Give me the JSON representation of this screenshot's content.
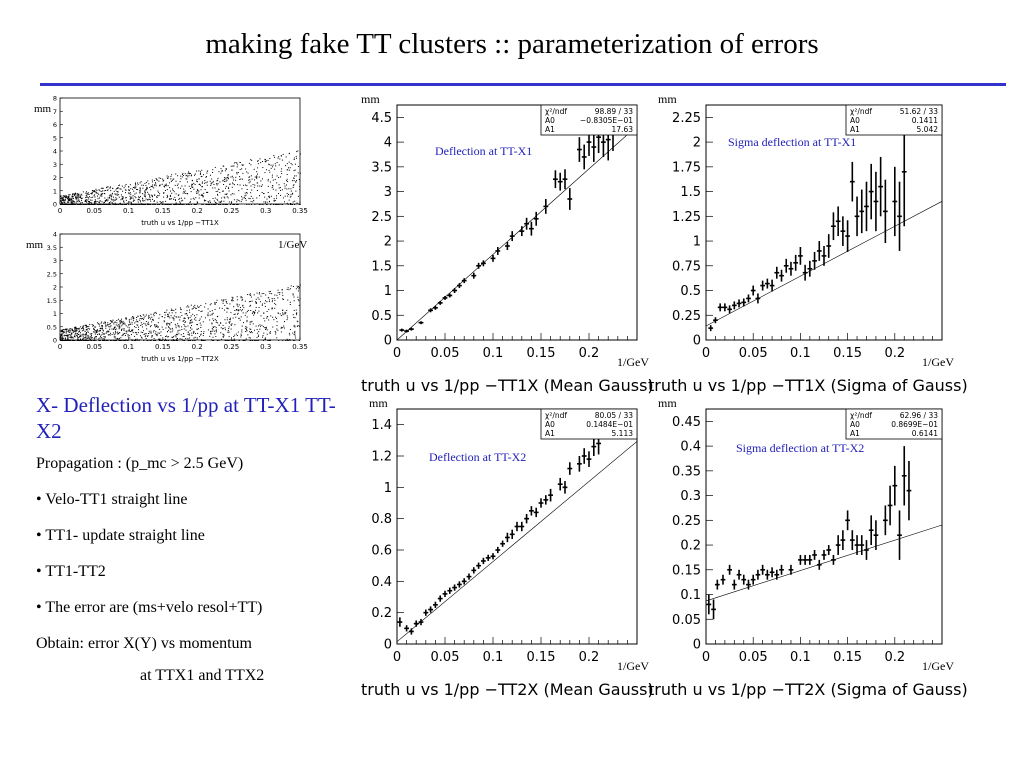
{
  "slide": {
    "title": "making fake TT clusters :: parameterization of errors",
    "heading": "X- Deflection vs 1/pp at TT-X1 TT-X2",
    "lines": [
      "Propagation : (p_mc > 2.5 GeV)",
      "• Velo-TT1 straight line",
      "• TT1- update straight line",
      "• TT1-TT2",
      "• The error are (ms+velo resol+TT)",
      "Obtain: error X(Y) vs momentum",
      "at TTX1 and TTX2"
    ]
  },
  "chart_data": [
    {
      "type": "scatter",
      "title": "truth  u vs 1/pp −TT1X",
      "ylabel": "mm",
      "xlabel": "",
      "xlim": [
        0,
        0.35
      ],
      "ylim": [
        0,
        8
      ],
      "xticks": [
        "0",
        "0.05",
        "0.1",
        "0.15",
        "0.2",
        "0.25",
        "0.3",
        "0.35"
      ],
      "yticks": [
        "0",
        "1",
        "2",
        "3",
        "4",
        "5",
        "6",
        "7",
        "8"
      ],
      "slope": 11.0,
      "intercept": 0.05,
      "spread": 0.6,
      "maxx": 0.35
    },
    {
      "type": "scatter",
      "title": "truth  u vs 1/pp −TT2X",
      "ylabel": "mm",
      "xlabel": "1/GeV",
      "xlim": [
        0,
        0.35
      ],
      "ylim": [
        0,
        4
      ],
      "xticks": [
        "0",
        "0.05",
        "0.1",
        "0.15",
        "0.2",
        "0.25",
        "0.3",
        "0.35"
      ],
      "yticks": [
        "0",
        "0.5",
        "1",
        "1.5",
        "2",
        "2.5",
        "3",
        "3.5",
        "4"
      ],
      "slope": 5.5,
      "intercept": 0.1,
      "spread": 0.3,
      "maxx": 0.35
    },
    {
      "type": "scatter",
      "title": "truth  u vs 1/pp −TT1X (Mean Gauss)",
      "annotation": "Deflection at TT-X1",
      "ylabel": "mm",
      "xlabel": "1/GeV",
      "xlim": [
        0,
        0.25
      ],
      "ylim": [
        0,
        4.75
      ],
      "xticks": [
        {
          "v": 0,
          "l": "0"
        },
        {
          "v": 0.05,
          "l": "0.05"
        },
        {
          "v": 0.1,
          "l": "0.1"
        },
        {
          "v": 0.15,
          "l": "0.15"
        },
        {
          "v": 0.2,
          "l": "0.2"
        }
      ],
      "yticks": [
        {
          "v": 0,
          "l": "0"
        },
        {
          "v": 0.5,
          "l": "0.5"
        },
        {
          "v": 1,
          "l": "1"
        },
        {
          "v": 1.5,
          "l": "1.5"
        },
        {
          "v": 2,
          "l": "2"
        },
        {
          "v": 2.5,
          "l": "2.5"
        },
        {
          "v": 3,
          "l": "3"
        },
        {
          "v": 3.5,
          "l": "3.5"
        },
        {
          "v": 4,
          "l": "4"
        },
        {
          "v": 4.5,
          "l": "4.5"
        }
      ],
      "stats": [
        [
          "χ²/ndf",
          "98.89   /   33"
        ],
        [
          "A0",
          "−0.8305E−01"
        ],
        [
          "A1",
          "17.63"
        ]
      ],
      "fit": {
        "a0": -0.08305,
        "a1": 17.63
      },
      "points": [
        [
          0.005,
          0.2,
          0.03
        ],
        [
          0.01,
          0.18,
          0.03
        ],
        [
          0.015,
          0.22,
          0.03
        ],
        [
          0.025,
          0.35,
          0.03
        ],
        [
          0.035,
          0.6,
          0.04
        ],
        [
          0.04,
          0.65,
          0.04
        ],
        [
          0.045,
          0.75,
          0.04
        ],
        [
          0.05,
          0.85,
          0.04
        ],
        [
          0.055,
          0.9,
          0.04
        ],
        [
          0.06,
          1.0,
          0.05
        ],
        [
          0.065,
          1.1,
          0.05
        ],
        [
          0.07,
          1.2,
          0.05
        ],
        [
          0.08,
          1.3,
          0.06
        ],
        [
          0.085,
          1.5,
          0.06
        ],
        [
          0.09,
          1.55,
          0.06
        ],
        [
          0.1,
          1.65,
          0.07
        ],
        [
          0.105,
          1.8,
          0.08
        ],
        [
          0.115,
          1.9,
          0.08
        ],
        [
          0.12,
          2.1,
          0.1
        ],
        [
          0.13,
          2.2,
          0.1
        ],
        [
          0.135,
          2.35,
          0.12
        ],
        [
          0.14,
          2.25,
          0.14
        ],
        [
          0.145,
          2.45,
          0.14
        ],
        [
          0.155,
          2.7,
          0.15
        ],
        [
          0.165,
          3.25,
          0.18
        ],
        [
          0.17,
          3.2,
          0.18
        ],
        [
          0.175,
          3.25,
          0.2
        ],
        [
          0.18,
          2.85,
          0.22
        ],
        [
          0.19,
          3.85,
          0.25
        ],
        [
          0.195,
          3.7,
          0.25
        ],
        [
          0.2,
          4.0,
          0.28
        ],
        [
          0.205,
          3.9,
          0.3
        ],
        [
          0.21,
          4.1,
          0.32
        ],
        [
          0.215,
          4.0,
          0.3
        ],
        [
          0.22,
          4.05,
          0.42
        ],
        [
          0.225,
          4.2,
          0.38
        ]
      ]
    },
    {
      "type": "scatter",
      "title": "truth  u vs 1/pp −TT1X (Sigma of Gauss)",
      "annotation": "Sigma deflection at TT-X1",
      "ylabel": "mm",
      "xlabel": "1/GeV",
      "xlim": [
        0,
        0.25
      ],
      "ylim": [
        0,
        2.375
      ],
      "xticks": [
        {
          "v": 0,
          "l": "0"
        },
        {
          "v": 0.05,
          "l": "0.05"
        },
        {
          "v": 0.1,
          "l": "0.1"
        },
        {
          "v": 0.15,
          "l": "0.15"
        },
        {
          "v": 0.2,
          "l": "0.2"
        }
      ],
      "yticks": [
        {
          "v": 0,
          "l": "0"
        },
        {
          "v": 0.25,
          "l": "0.25"
        },
        {
          "v": 0.5,
          "l": "0.5"
        },
        {
          "v": 0.75,
          "l": "0.75"
        },
        {
          "v": 1,
          "l": "1"
        },
        {
          "v": 1.25,
          "l": "1.25"
        },
        {
          "v": 1.5,
          "l": "1.5"
        },
        {
          "v": 1.75,
          "l": "1.75"
        },
        {
          "v": 2,
          "l": "2"
        },
        {
          "v": 2.25,
          "l": "2.25"
        }
      ],
      "stats": [
        [
          "χ²/ndf",
          "51.62   /   33"
        ],
        [
          "A0",
          "0.1411"
        ],
        [
          "A1",
          "5.042"
        ]
      ],
      "fit": {
        "a0": 0.1411,
        "a1": 5.042
      },
      "points": [
        [
          0.005,
          0.12,
          0.03
        ],
        [
          0.01,
          0.2,
          0.03
        ],
        [
          0.015,
          0.33,
          0.04
        ],
        [
          0.02,
          0.33,
          0.04
        ],
        [
          0.025,
          0.31,
          0.04
        ],
        [
          0.03,
          0.35,
          0.04
        ],
        [
          0.035,
          0.37,
          0.04
        ],
        [
          0.04,
          0.38,
          0.04
        ],
        [
          0.045,
          0.42,
          0.04
        ],
        [
          0.05,
          0.5,
          0.05
        ],
        [
          0.055,
          0.42,
          0.05
        ],
        [
          0.06,
          0.55,
          0.05
        ],
        [
          0.065,
          0.57,
          0.05
        ],
        [
          0.07,
          0.55,
          0.06
        ],
        [
          0.075,
          0.68,
          0.06
        ],
        [
          0.08,
          0.65,
          0.06
        ],
        [
          0.085,
          0.75,
          0.07
        ],
        [
          0.09,
          0.72,
          0.07
        ],
        [
          0.095,
          0.78,
          0.08
        ],
        [
          0.1,
          0.85,
          0.09
        ],
        [
          0.105,
          0.68,
          0.08
        ],
        [
          0.11,
          0.72,
          0.08
        ],
        [
          0.115,
          0.8,
          0.09
        ],
        [
          0.12,
          0.9,
          0.1
        ],
        [
          0.125,
          0.85,
          0.1
        ],
        [
          0.13,
          0.95,
          0.12
        ],
        [
          0.135,
          1.15,
          0.14
        ],
        [
          0.14,
          1.2,
          0.15
        ],
        [
          0.145,
          1.1,
          0.15
        ],
        [
          0.15,
          1.05,
          0.16
        ],
        [
          0.155,
          1.6,
          0.2
        ],
        [
          0.16,
          1.25,
          0.2
        ],
        [
          0.165,
          1.3,
          0.22
        ],
        [
          0.17,
          1.35,
          0.25
        ],
        [
          0.175,
          1.5,
          0.28
        ],
        [
          0.18,
          1.4,
          0.3
        ],
        [
          0.185,
          1.55,
          0.3
        ],
        [
          0.19,
          1.3,
          0.32
        ],
        [
          0.2,
          1.4,
          0.35
        ],
        [
          0.205,
          1.25,
          0.35
        ],
        [
          0.21,
          1.7,
          0.55
        ]
      ]
    },
    {
      "type": "scatter",
      "title": "truth  u vs 1/pp −TT2X (Mean Gauss)",
      "annotation": "Deflection at TT-X2",
      "ylabel": "mm",
      "xlabel": "1/GeV",
      "xlim": [
        0,
        0.25
      ],
      "ylim": [
        0,
        1.5
      ],
      "xticks": [
        {
          "v": 0,
          "l": "0"
        },
        {
          "v": 0.05,
          "l": "0.05"
        },
        {
          "v": 0.1,
          "l": "0.1"
        },
        {
          "v": 0.15,
          "l": "0.15"
        },
        {
          "v": 0.2,
          "l": "0.2"
        }
      ],
      "yticks": [
        {
          "v": 0,
          "l": "0"
        },
        {
          "v": 0.2,
          "l": "0.2"
        },
        {
          "v": 0.4,
          "l": "0.4"
        },
        {
          "v": 0.6,
          "l": "0.6"
        },
        {
          "v": 0.8,
          "l": "0.8"
        },
        {
          "v": 1.0,
          "l": "1"
        },
        {
          "v": 1.2,
          "l": "1.2"
        },
        {
          "v": 1.4,
          "l": "1.4"
        }
      ],
      "stats": [
        [
          "χ²/ndf",
          "80.05   /   33"
        ],
        [
          "A0",
          "0.1484E−01"
        ],
        [
          "A1",
          "5.113"
        ]
      ],
      "fit": {
        "a0": 0.01484,
        "a1": 5.113
      },
      "points": [
        [
          0.003,
          0.14,
          0.03
        ],
        [
          0.01,
          0.1,
          0.02
        ],
        [
          0.015,
          0.08,
          0.02
        ],
        [
          0.02,
          0.13,
          0.02
        ],
        [
          0.025,
          0.14,
          0.02
        ],
        [
          0.03,
          0.2,
          0.02
        ],
        [
          0.035,
          0.22,
          0.02
        ],
        [
          0.04,
          0.25,
          0.02
        ],
        [
          0.045,
          0.29,
          0.02
        ],
        [
          0.05,
          0.32,
          0.02
        ],
        [
          0.055,
          0.34,
          0.02
        ],
        [
          0.06,
          0.36,
          0.02
        ],
        [
          0.065,
          0.38,
          0.02
        ],
        [
          0.07,
          0.4,
          0.02
        ],
        [
          0.075,
          0.43,
          0.02
        ],
        [
          0.08,
          0.47,
          0.02
        ],
        [
          0.085,
          0.5,
          0.02
        ],
        [
          0.09,
          0.53,
          0.02
        ],
        [
          0.095,
          0.55,
          0.02
        ],
        [
          0.1,
          0.56,
          0.02
        ],
        [
          0.105,
          0.6,
          0.02
        ],
        [
          0.11,
          0.64,
          0.02
        ],
        [
          0.115,
          0.68,
          0.03
        ],
        [
          0.12,
          0.7,
          0.03
        ],
        [
          0.125,
          0.75,
          0.03
        ],
        [
          0.13,
          0.75,
          0.03
        ],
        [
          0.135,
          0.8,
          0.03
        ],
        [
          0.14,
          0.85,
          0.03
        ],
        [
          0.145,
          0.84,
          0.03
        ],
        [
          0.15,
          0.9,
          0.03
        ],
        [
          0.155,
          0.92,
          0.03
        ],
        [
          0.16,
          0.95,
          0.04
        ],
        [
          0.17,
          1.02,
          0.04
        ],
        [
          0.175,
          1.0,
          0.04
        ],
        [
          0.18,
          1.12,
          0.04
        ],
        [
          0.19,
          1.15,
          0.05
        ],
        [
          0.195,
          1.2,
          0.05
        ],
        [
          0.2,
          1.18,
          0.05
        ],
        [
          0.205,
          1.26,
          0.06
        ],
        [
          0.21,
          1.28,
          0.07
        ]
      ]
    },
    {
      "type": "scatter",
      "title": "truth  u vs 1/pp −TT2X (Sigma of Gauss)",
      "annotation": "Sigma deflection at TT-X2",
      "ylabel": "mm",
      "xlabel": "1/GeV",
      "xlim": [
        0,
        0.25
      ],
      "ylim": [
        0,
        0.475
      ],
      "xticks": [
        {
          "v": 0,
          "l": "0"
        },
        {
          "v": 0.05,
          "l": "0.05"
        },
        {
          "v": 0.1,
          "l": "0.1"
        },
        {
          "v": 0.15,
          "l": "0.15"
        },
        {
          "v": 0.2,
          "l": "0.2"
        }
      ],
      "yticks": [
        {
          "v": 0,
          "l": "0"
        },
        {
          "v": 0.05,
          "l": "0.05"
        },
        {
          "v": 0.1,
          "l": "0.1"
        },
        {
          "v": 0.15,
          "l": "0.15"
        },
        {
          "v": 0.2,
          "l": "0.2"
        },
        {
          "v": 0.25,
          "l": "0.25"
        },
        {
          "v": 0.3,
          "l": "0.3"
        },
        {
          "v": 0.35,
          "l": "0.35"
        },
        {
          "v": 0.4,
          "l": "0.4"
        },
        {
          "v": 0.45,
          "l": "0.45"
        }
      ],
      "stats": [
        [
          "χ²/ndf",
          "62.96   /   33"
        ],
        [
          "A0",
          "0.8699E−01"
        ],
        [
          "A1",
          "0.6141"
        ]
      ],
      "fit": {
        "a0": 0.08699,
        "a1": 0.6141
      },
      "points": [
        [
          0.003,
          0.08,
          0.02
        ],
        [
          0.008,
          0.07,
          0.02
        ],
        [
          0.012,
          0.12,
          0.01
        ],
        [
          0.018,
          0.13,
          0.01
        ],
        [
          0.025,
          0.15,
          0.01
        ],
        [
          0.03,
          0.12,
          0.01
        ],
        [
          0.035,
          0.14,
          0.01
        ],
        [
          0.04,
          0.13,
          0.01
        ],
        [
          0.045,
          0.12,
          0.01
        ],
        [
          0.05,
          0.13,
          0.01
        ],
        [
          0.055,
          0.14,
          0.01
        ],
        [
          0.06,
          0.15,
          0.01
        ],
        [
          0.065,
          0.14,
          0.01
        ],
        [
          0.07,
          0.145,
          0.01
        ],
        [
          0.075,
          0.14,
          0.01
        ],
        [
          0.08,
          0.15,
          0.01
        ],
        [
          0.09,
          0.15,
          0.01
        ],
        [
          0.1,
          0.17,
          0.01
        ],
        [
          0.105,
          0.17,
          0.01
        ],
        [
          0.11,
          0.17,
          0.01
        ],
        [
          0.115,
          0.18,
          0.01
        ],
        [
          0.12,
          0.16,
          0.01
        ],
        [
          0.125,
          0.18,
          0.01
        ],
        [
          0.13,
          0.19,
          0.01
        ],
        [
          0.135,
          0.17,
          0.01
        ],
        [
          0.14,
          0.2,
          0.02
        ],
        [
          0.145,
          0.21,
          0.02
        ],
        [
          0.15,
          0.25,
          0.02
        ],
        [
          0.155,
          0.21,
          0.02
        ],
        [
          0.16,
          0.2,
          0.02
        ],
        [
          0.165,
          0.2,
          0.02
        ],
        [
          0.17,
          0.19,
          0.02
        ],
        [
          0.175,
          0.23,
          0.03
        ],
        [
          0.18,
          0.22,
          0.03
        ],
        [
          0.19,
          0.25,
          0.03
        ],
        [
          0.195,
          0.28,
          0.04
        ],
        [
          0.2,
          0.32,
          0.04
        ],
        [
          0.205,
          0.22,
          0.05
        ],
        [
          0.21,
          0.34,
          0.06
        ],
        [
          0.215,
          0.31,
          0.06
        ]
      ]
    }
  ]
}
